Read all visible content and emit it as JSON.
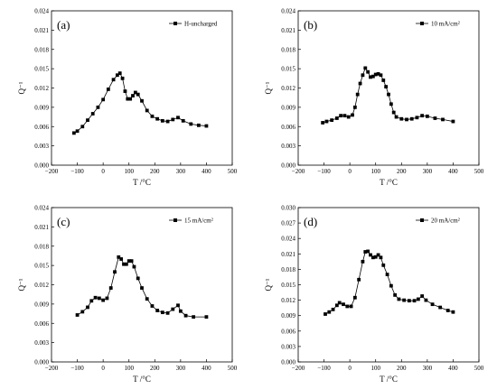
{
  "chart_data": [
    {
      "type": "scatter",
      "panel_label": "(a)",
      "xlabel": "T /°C",
      "ylabel": "Q⁻¹",
      "xlim": [
        -200,
        500
      ],
      "ylim": [
        0,
        0.024
      ],
      "xticks": [
        "−200",
        "−100",
        "0",
        "100",
        "200",
        "300",
        "400",
        "500"
      ],
      "yticks": [
        "0.000",
        "0.003",
        "0.006",
        "0.009",
        "0.012",
        "0.015",
        "0.018",
        "0.021",
        "0.024"
      ],
      "legend": "top-right",
      "series": [
        {
          "name": "H-uncharged",
          "points": [
            [
              -113,
              0.005
            ],
            [
              -100,
              0.0053
            ],
            [
              -80,
              0.006
            ],
            [
              -60,
              0.007
            ],
            [
              -40,
              0.008
            ],
            [
              -20,
              0.009
            ],
            [
              0,
              0.0102
            ],
            [
              20,
              0.0118
            ],
            [
              40,
              0.0133
            ],
            [
              55,
              0.014
            ],
            [
              65,
              0.0143
            ],
            [
              75,
              0.0135
            ],
            [
              85,
              0.0115
            ],
            [
              95,
              0.0103
            ],
            [
              105,
              0.0103
            ],
            [
              115,
              0.0108
            ],
            [
              125,
              0.0113
            ],
            [
              135,
              0.011
            ],
            [
              150,
              0.01
            ],
            [
              170,
              0.0085
            ],
            [
              190,
              0.0076
            ],
            [
              210,
              0.0072
            ],
            [
              230,
              0.0069
            ],
            [
              250,
              0.0068
            ],
            [
              270,
              0.0071
            ],
            [
              290,
              0.0074
            ],
            [
              310,
              0.0069
            ],
            [
              340,
              0.0064
            ],
            [
              370,
              0.0062
            ],
            [
              400,
              0.0061
            ]
          ]
        }
      ]
    },
    {
      "type": "scatter",
      "panel_label": "(b)",
      "xlabel": "T /°C",
      "ylabel": "Q⁻¹",
      "xlim": [
        -200,
        500
      ],
      "ylim": [
        0,
        0.024
      ],
      "xticks": [
        "−200",
        "−100",
        "0",
        "100",
        "200",
        "300",
        "400",
        "500"
      ],
      "yticks": [
        "0.000",
        "0.003",
        "0.006",
        "0.009",
        "0.012",
        "0.015",
        "0.018",
        "0.021",
        "0.024"
      ],
      "legend": "top-right",
      "series": [
        {
          "name": "10 mA/cm²",
          "points": [
            [
              -105,
              0.0066
            ],
            [
              -90,
              0.0068
            ],
            [
              -70,
              0.007
            ],
            [
              -50,
              0.0073
            ],
            [
              -35,
              0.0077
            ],
            [
              -20,
              0.0077
            ],
            [
              -5,
              0.0075
            ],
            [
              10,
              0.0078
            ],
            [
              20,
              0.009
            ],
            [
              30,
              0.011
            ],
            [
              40,
              0.0127
            ],
            [
              50,
              0.014
            ],
            [
              60,
              0.0151
            ],
            [
              70,
              0.0145
            ],
            [
              80,
              0.0137
            ],
            [
              90,
              0.0138
            ],
            [
              100,
              0.0141
            ],
            [
              110,
              0.0142
            ],
            [
              120,
              0.014
            ],
            [
              130,
              0.0132
            ],
            [
              140,
              0.0122
            ],
            [
              150,
              0.011
            ],
            [
              160,
              0.0095
            ],
            [
              170,
              0.0082
            ],
            [
              180,
              0.0075
            ],
            [
              200,
              0.0072
            ],
            [
              220,
              0.0071
            ],
            [
              240,
              0.0072
            ],
            [
              260,
              0.0074
            ],
            [
              280,
              0.0077
            ],
            [
              300,
              0.0076
            ],
            [
              330,
              0.0073
            ],
            [
              360,
              0.0071
            ],
            [
              400,
              0.0068
            ]
          ]
        }
      ]
    },
    {
      "type": "scatter",
      "panel_label": "(c)",
      "xlabel": "T /°C",
      "ylabel": "Q⁻¹",
      "xlim": [
        -200,
        500
      ],
      "ylim": [
        0,
        0.024
      ],
      "xticks": [
        "−200",
        "−100",
        "0",
        "100",
        "200",
        "300",
        "400",
        "500"
      ],
      "yticks": [
        "0.000",
        "0.003",
        "0.006",
        "0.009",
        "0.012",
        "0.015",
        "0.018",
        "0.021",
        "0.024"
      ],
      "legend": "top-right",
      "series": [
        {
          "name": "15 mA/cm²",
          "points": [
            [
              -100,
              0.0073
            ],
            [
              -80,
              0.0078
            ],
            [
              -60,
              0.0085
            ],
            [
              -45,
              0.0095
            ],
            [
              -30,
              0.01
            ],
            [
              -15,
              0.0099
            ],
            [
              0,
              0.0096
            ],
            [
              15,
              0.0099
            ],
            [
              30,
              0.0115
            ],
            [
              45,
              0.014
            ],
            [
              60,
              0.0163
            ],
            [
              70,
              0.016
            ],
            [
              80,
              0.0152
            ],
            [
              90,
              0.0152
            ],
            [
              100,
              0.0157
            ],
            [
              110,
              0.0157
            ],
            [
              120,
              0.0148
            ],
            [
              135,
              0.013
            ],
            [
              150,
              0.0115
            ],
            [
              170,
              0.0098
            ],
            [
              190,
              0.0087
            ],
            [
              210,
              0.008
            ],
            [
              230,
              0.0077
            ],
            [
              250,
              0.0076
            ],
            [
              270,
              0.0082
            ],
            [
              290,
              0.0088
            ],
            [
              300,
              0.0079
            ],
            [
              320,
              0.0072
            ],
            [
              350,
              0.007
            ],
            [
              400,
              0.007
            ]
          ]
        }
      ]
    },
    {
      "type": "scatter",
      "panel_label": "(d)",
      "xlabel": "T /°C",
      "ylabel": "Q⁻¹",
      "xlim": [
        -200,
        500
      ],
      "ylim": [
        0,
        0.03
      ],
      "xticks": [
        "−200",
        "−100",
        "0",
        "100",
        "200",
        "300",
        "400",
        "500"
      ],
      "yticks": [
        "0.000",
        "0.003",
        "0.006",
        "0.009",
        "0.012",
        "0.015",
        "0.018",
        "0.021",
        "0.024",
        "0.027",
        "0.030"
      ],
      "legend": "top-right",
      "series": [
        {
          "name": "20 mA/cm²",
          "points": [
            [
              -95,
              0.0093
            ],
            [
              -80,
              0.0097
            ],
            [
              -65,
              0.0102
            ],
            [
              -50,
              0.011
            ],
            [
              -40,
              0.0115
            ],
            [
              -25,
              0.0112
            ],
            [
              -10,
              0.0108
            ],
            [
              5,
              0.0108
            ],
            [
              20,
              0.0125
            ],
            [
              35,
              0.016
            ],
            [
              50,
              0.0195
            ],
            [
              60,
              0.0214
            ],
            [
              70,
              0.0215
            ],
            [
              80,
              0.0208
            ],
            [
              90,
              0.0203
            ],
            [
              100,
              0.0204
            ],
            [
              110,
              0.0208
            ],
            [
              120,
              0.0203
            ],
            [
              130,
              0.0188
            ],
            [
              145,
              0.017
            ],
            [
              160,
              0.0148
            ],
            [
              175,
              0.013
            ],
            [
              190,
              0.0122
            ],
            [
              210,
              0.012
            ],
            [
              230,
              0.0119
            ],
            [
              250,
              0.0119
            ],
            [
              265,
              0.0122
            ],
            [
              280,
              0.0128
            ],
            [
              295,
              0.012
            ],
            [
              320,
              0.0112
            ],
            [
              350,
              0.0106
            ],
            [
              380,
              0.01
            ],
            [
              400,
              0.0097
            ]
          ]
        }
      ]
    }
  ]
}
